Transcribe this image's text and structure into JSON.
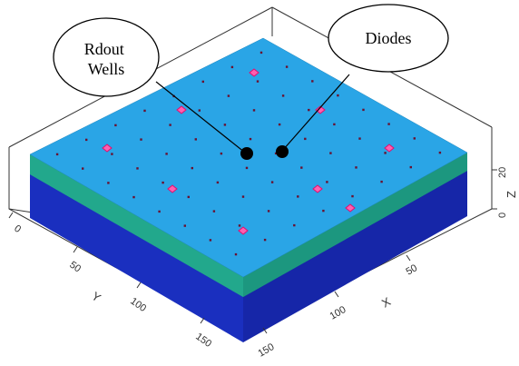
{
  "callouts": [
    {
      "id": "rdout-wells",
      "lines": [
        "Rdout",
        "Wells"
      ]
    },
    {
      "id": "diodes",
      "lines": [
        "Diodes"
      ]
    }
  ],
  "axes": {
    "y": {
      "label": "Y",
      "ticks": [
        "0",
        "50",
        "100",
        "150"
      ]
    },
    "x": {
      "label": "X",
      "ticks": [
        "50",
        "100",
        "150"
      ]
    },
    "z": {
      "label": "Z",
      "ticks": [
        "0",
        "20"
      ]
    }
  },
  "colors": {
    "top_face": "#2aa5e6",
    "green_layer": "#1f9e86",
    "blue_layer": "#1a2fbf",
    "marker": "#e0106e",
    "marker_fill": "#ff5fb0",
    "dot": "#6a1030"
  }
}
